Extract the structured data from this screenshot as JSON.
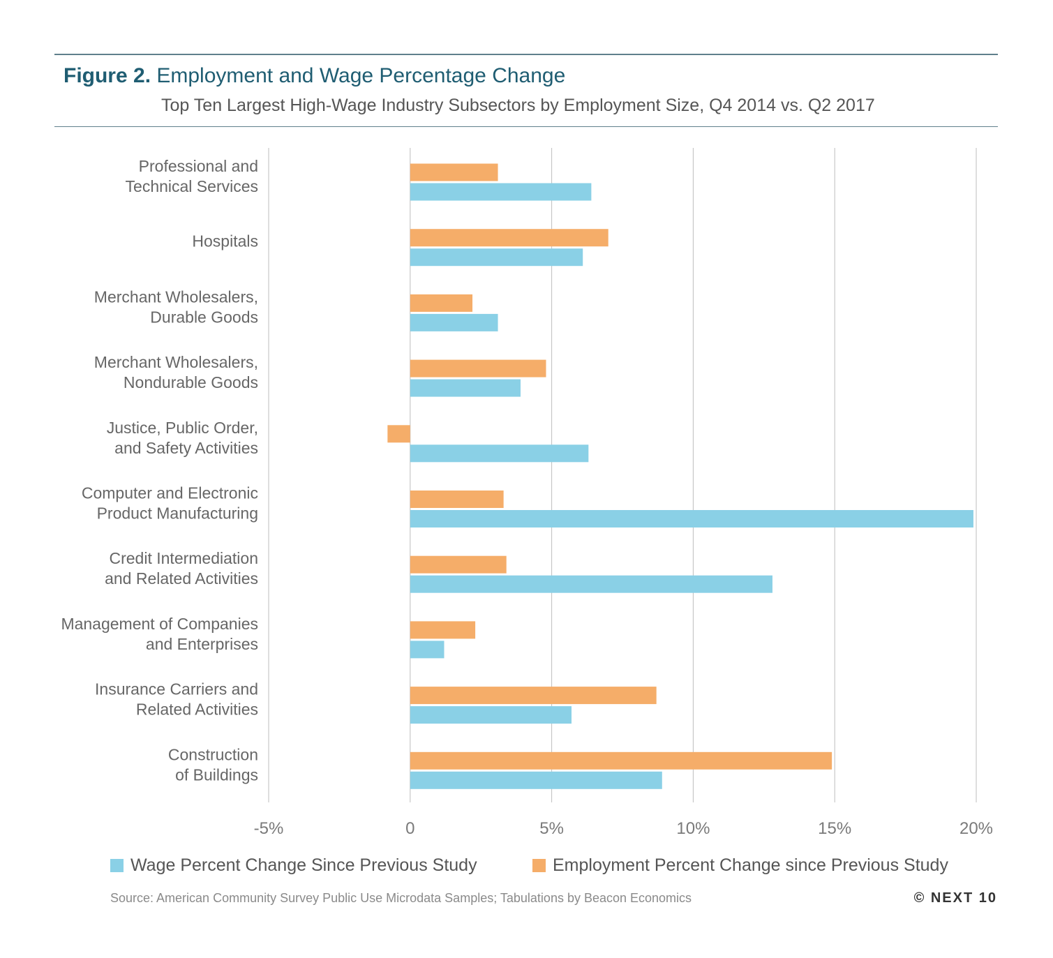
{
  "header": {
    "figure_label": "Figure 2.",
    "title": "Employment and Wage Percentage Change",
    "subtitle": "Top Ten Largest High-Wage Industry Subsectors by Employment Size, Q4 2014 vs. Q2 2017"
  },
  "legend": {
    "wage_label": "Wage Percent Change Since Previous Study",
    "employment_label": "Employment Percent Change since Previous Study"
  },
  "footer": {
    "source": "Source: American Community Survey Public Use Microdata Samples; Tabulations by Beacon Economics",
    "copyright": "© NEXT 10"
  },
  "colors": {
    "wage": "#8ad0e6",
    "employment": "#f5ad69",
    "gridline": "#bdbdbd",
    "axis_text": "#7a7a7a",
    "category_text": "#666666"
  },
  "chart_data": {
    "type": "bar",
    "orientation": "horizontal",
    "categories": [
      [
        "Professional and",
        "Technical Services"
      ],
      [
        "Hospitals"
      ],
      [
        "Merchant Wholesalers,",
        "Durable Goods"
      ],
      [
        "Merchant Wholesalers,",
        "Nondurable Goods"
      ],
      [
        "Justice, Public Order,",
        "and Safety Activities"
      ],
      [
        "Computer and Electronic",
        "Product Manufacturing"
      ],
      [
        "Credit Intermediation",
        "and Related Activities"
      ],
      [
        "Management of Companies",
        "and Enterprises"
      ],
      [
        "Insurance Carriers and",
        "Related Activities"
      ],
      [
        "Construction",
        "of Buildings"
      ]
    ],
    "series": [
      {
        "name": "Employment Percent Change since Previous Study",
        "key": "employment",
        "values": [
          3.1,
          7.0,
          2.2,
          4.8,
          -0.8,
          3.3,
          3.4,
          2.3,
          8.7,
          14.9
        ]
      },
      {
        "name": "Wage Percent Change Since Previous Study",
        "key": "wage",
        "values": [
          6.4,
          6.1,
          3.1,
          3.9,
          6.3,
          19.9,
          12.8,
          1.2,
          5.7,
          8.9
        ]
      }
    ],
    "xlim": [
      -5,
      20
    ],
    "xticks": [
      -5,
      0,
      5,
      10,
      15,
      20
    ],
    "xtick_labels": [
      "-5%",
      "0",
      "5%",
      "10%",
      "15%",
      "20%"
    ],
    "grid": true,
    "legend_position": "bottom"
  }
}
